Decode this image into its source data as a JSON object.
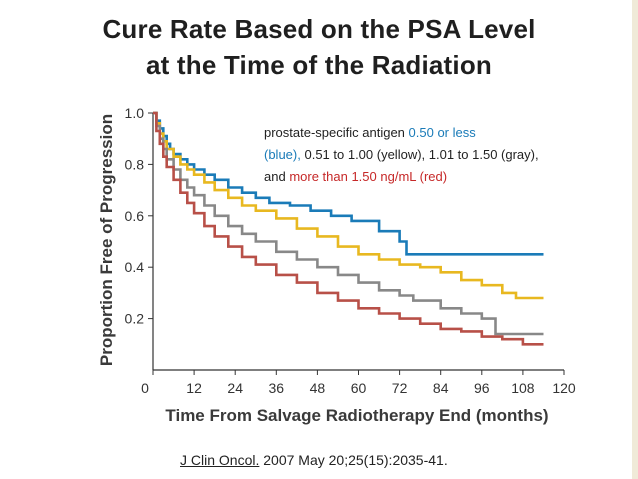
{
  "slide": {
    "title_line1": "Cure Rate Based on the PSA Level",
    "title_line2": "at the Time of the Radiation",
    "citation_journal": "J Clin Oncol.",
    "citation_details": " 2007 May 20;25(15):2035-41."
  },
  "legend": {
    "intro": "prostate-specific antigen ",
    "blue_label": "0.50 or less",
    "blue_paren": "(blue),",
    "middle": " 0.51 to 1.00 (yellow), 1.01 to 1.50 (gray), and ",
    "red_label": "more than 1.50 ng/mL (red)"
  },
  "chart_data": {
    "type": "line",
    "xlabel": "Time From Salvage Radiotherapy End (months)",
    "ylabel": "Proportion Free of Progression",
    "xlim": [
      0,
      120
    ],
    "ylim": [
      0,
      1.0
    ],
    "xticks": [
      0,
      12,
      24,
      36,
      48,
      60,
      72,
      84,
      96,
      108,
      120
    ],
    "yticks": [
      0.2,
      0.4,
      0.6,
      0.8,
      1.0
    ],
    "ytick_labels": [
      "0.2",
      "0.4",
      "0.6",
      "0.8",
      "1.0"
    ],
    "grid": false,
    "series": [
      {
        "color": "#1a7bb8",
        "x": [
          0,
          1,
          2,
          3,
          4,
          5,
          6,
          8,
          10,
          12,
          15,
          18,
          22,
          26,
          30,
          34,
          40,
          46,
          52,
          58,
          66,
          72,
          74,
          84,
          96,
          106,
          114
        ],
        "y": [
          1.0,
          0.97,
          0.94,
          0.91,
          0.88,
          0.86,
          0.84,
          0.82,
          0.8,
          0.78,
          0.76,
          0.74,
          0.71,
          0.69,
          0.67,
          0.65,
          0.64,
          0.62,
          0.6,
          0.58,
          0.54,
          0.5,
          0.45,
          0.45,
          0.45,
          0.45,
          0.45
        ]
      },
      {
        "color": "#e8b820",
        "x": [
          0,
          1,
          2,
          3,
          4,
          6,
          8,
          10,
          12,
          15,
          18,
          22,
          26,
          30,
          36,
          42,
          48,
          54,
          60,
          66,
          72,
          78,
          84,
          90,
          96,
          102,
          106,
          114
        ],
        "y": [
          1.0,
          0.96,
          0.92,
          0.89,
          0.86,
          0.83,
          0.8,
          0.78,
          0.76,
          0.73,
          0.7,
          0.67,
          0.64,
          0.62,
          0.59,
          0.55,
          0.52,
          0.48,
          0.45,
          0.43,
          0.41,
          0.4,
          0.38,
          0.35,
          0.33,
          0.3,
          0.28,
          0.28
        ]
      },
      {
        "color": "#888888",
        "x": [
          0,
          1,
          2,
          3,
          4,
          6,
          8,
          10,
          12,
          15,
          18,
          22,
          26,
          30,
          36,
          42,
          48,
          54,
          60,
          66,
          72,
          76,
          84,
          90,
          96,
          100,
          108,
          114
        ],
        "y": [
          1.0,
          0.95,
          0.9,
          0.86,
          0.82,
          0.78,
          0.74,
          0.71,
          0.68,
          0.64,
          0.6,
          0.56,
          0.53,
          0.5,
          0.46,
          0.43,
          0.4,
          0.37,
          0.34,
          0.31,
          0.29,
          0.27,
          0.24,
          0.22,
          0.2,
          0.14,
          0.14,
          0.14
        ]
      },
      {
        "color": "#b85048",
        "x": [
          0,
          1,
          2,
          3,
          4,
          6,
          8,
          10,
          12,
          15,
          18,
          22,
          26,
          30,
          36,
          42,
          48,
          54,
          60,
          66,
          72,
          78,
          84,
          90,
          96,
          102,
          108,
          114
        ],
        "y": [
          1.0,
          0.93,
          0.88,
          0.83,
          0.79,
          0.74,
          0.69,
          0.65,
          0.61,
          0.56,
          0.52,
          0.48,
          0.44,
          0.41,
          0.37,
          0.34,
          0.3,
          0.27,
          0.24,
          0.22,
          0.2,
          0.18,
          0.16,
          0.15,
          0.13,
          0.12,
          0.1,
          0.1
        ]
      }
    ]
  }
}
